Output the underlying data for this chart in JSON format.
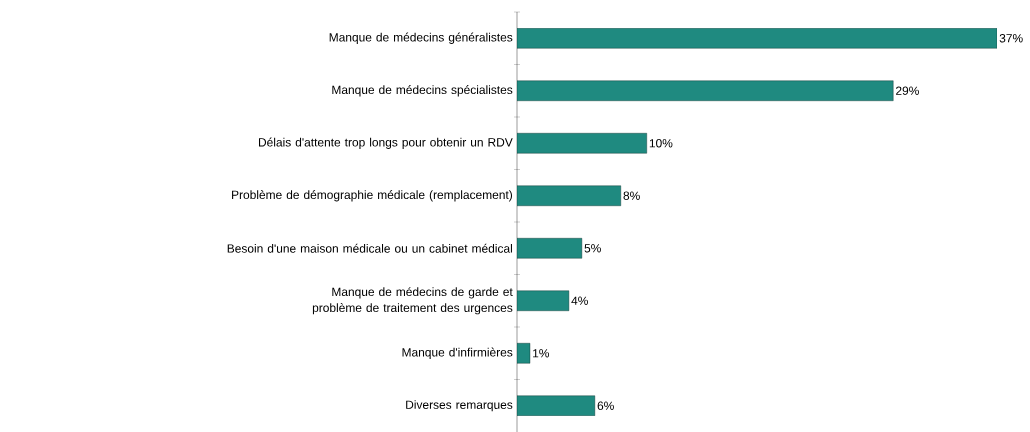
{
  "chart_data": {
    "type": "bar",
    "orientation": "horizontal",
    "categories": [
      "Manque de médecins généralistes",
      "Manque de médecins spécialistes",
      "Délais d'attente trop longs pour obtenir un RDV",
      "Problème de démographie médicale (remplacement)",
      "Besoin d'une maison médicale ou un cabinet médical",
      "Manque de médecins de garde et problème de traitement des urgences",
      "Manque d'infirmières",
      "Diverses remarques"
    ],
    "values": [
      37,
      29,
      10,
      8,
      5,
      4,
      1,
      6
    ],
    "value_labels": [
      "37%",
      "29%",
      "10%",
      "8%",
      "5%",
      "4%",
      "1%",
      "6%"
    ],
    "color": "#1f8a80"
  }
}
